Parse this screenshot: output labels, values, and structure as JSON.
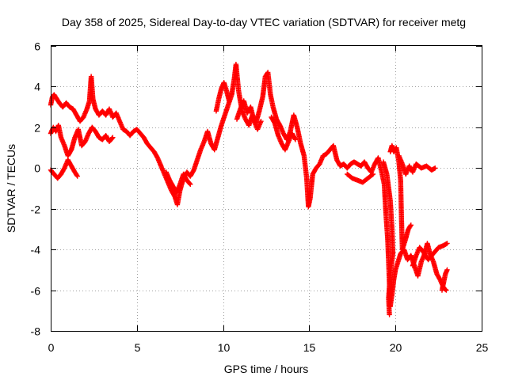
{
  "chart_data": {
    "type": "scatter",
    "title": "Day 358 of 2025, Sidereal Day-to-day VTEC variation (SDTVAR) for receiver metg",
    "xlabel": "GPS time / hours",
    "ylabel": "SDTVAR / TECUs",
    "xlim": [
      0,
      25
    ],
    "ylim": [
      -8,
      6
    ],
    "xticks": [
      0,
      5,
      10,
      15,
      20,
      25
    ],
    "yticks": [
      -8,
      -6,
      -4,
      -2,
      0,
      2,
      4,
      6
    ],
    "xtick_labels": [
      "0",
      "5",
      "10",
      "15",
      "20",
      "25"
    ],
    "ytick_labels": [
      "-8",
      "-6",
      "-4",
      "-2",
      "0",
      "2",
      "4",
      "6"
    ],
    "grid": true,
    "marker": "+",
    "color": "#ff0000",
    "series": [
      {
        "name": "SDTVAR",
        "segments": [
          [
            [
              0.0,
              3.1
            ],
            [
              0.1,
              3.5
            ],
            [
              0.2,
              3.6
            ],
            [
              0.35,
              3.4
            ],
            [
              0.5,
              3.2
            ],
            [
              0.7,
              3.0
            ],
            [
              0.9,
              3.2
            ],
            [
              1.1,
              3.0
            ],
            [
              1.3,
              2.9
            ],
            [
              1.5,
              2.6
            ],
            [
              1.7,
              2.3
            ],
            [
              1.9,
              2.5
            ],
            [
              2.1,
              2.9
            ],
            [
              2.25,
              3.3
            ],
            [
              2.35,
              4.5
            ],
            [
              2.45,
              3.4
            ],
            [
              2.6,
              2.9
            ],
            [
              2.8,
              2.6
            ],
            [
              3.0,
              2.8
            ],
            [
              3.2,
              2.6
            ],
            [
              3.4,
              2.9
            ],
            [
              3.6,
              2.5
            ],
            [
              3.8,
              2.7
            ],
            [
              4.0,
              2.3
            ],
            [
              4.2,
              1.9
            ],
            [
              4.4,
              1.8
            ],
            [
              4.6,
              1.6
            ],
            [
              4.8,
              1.8
            ],
            [
              5.0,
              1.9
            ],
            [
              5.2,
              1.7
            ],
            [
              5.4,
              1.5
            ],
            [
              5.6,
              1.2
            ],
            [
              5.8,
              1.0
            ],
            [
              6.0,
              0.8
            ],
            [
              6.2,
              0.5
            ],
            [
              6.4,
              0.1
            ],
            [
              6.6,
              -0.3
            ],
            [
              6.8,
              -0.7
            ],
            [
              7.0,
              -1.1
            ],
            [
              7.2,
              -1.4
            ],
            [
              7.35,
              -1.8
            ],
            [
              7.5,
              -1.1
            ],
            [
              7.7,
              -0.5
            ],
            [
              7.9,
              -0.2
            ],
            [
              8.1,
              -0.4
            ],
            [
              8.3,
              -0.1
            ],
            [
              8.5,
              0.4
            ],
            [
              8.7,
              0.9
            ],
            [
              8.9,
              1.3
            ],
            [
              9.1,
              1.8
            ],
            [
              9.3,
              1.2
            ],
            [
              9.5,
              0.9
            ],
            [
              9.7,
              1.5
            ],
            [
              9.9,
              2.1
            ],
            [
              10.1,
              2.6
            ],
            [
              10.3,
              3.1
            ],
            [
              10.5,
              3.6
            ],
            [
              10.65,
              4.4
            ],
            [
              10.75,
              5.1
            ],
            [
              10.9,
              3.8
            ],
            [
              11.1,
              2.8
            ],
            [
              11.3,
              2.4
            ],
            [
              11.5,
              2.1
            ],
            [
              11.7,
              2.6
            ],
            [
              11.9,
              2.2
            ],
            [
              12.1,
              2.8
            ],
            [
              12.3,
              3.5
            ],
            [
              12.45,
              4.5
            ],
            [
              12.6,
              4.7
            ],
            [
              12.75,
              3.6
            ],
            [
              12.9,
              3.0
            ],
            [
              13.1,
              2.4
            ],
            [
              13.3,
              2.1
            ],
            [
              13.5,
              1.7
            ],
            [
              13.7,
              1.4
            ],
            [
              13.9,
              1.8
            ],
            [
              14.1,
              2.6
            ],
            [
              14.3,
              2.0
            ],
            [
              14.5,
              1.2
            ],
            [
              14.7,
              0.6
            ],
            [
              14.85,
              -0.5
            ],
            [
              14.95,
              -1.9
            ],
            [
              15.05,
              -1.5
            ],
            [
              15.2,
              -0.3
            ],
            [
              15.4,
              0.0
            ],
            [
              15.6,
              0.2
            ],
            [
              15.8,
              0.6
            ],
            [
              16.0,
              0.7
            ],
            [
              16.2,
              0.9
            ],
            [
              16.4,
              1.1
            ],
            [
              16.6,
              0.4
            ],
            [
              16.8,
              0.1
            ],
            [
              17.0,
              0.2
            ],
            [
              17.2,
              0.0
            ],
            [
              17.4,
              0.2
            ],
            [
              17.6,
              0.3
            ],
            [
              17.8,
              0.2
            ],
            [
              18.0,
              0.1
            ],
            [
              18.2,
              0.3
            ],
            [
              18.4,
              0.0
            ],
            [
              18.6,
              -0.2
            ],
            [
              18.8,
              0.2
            ],
            [
              19.0,
              0.5
            ],
            [
              19.2,
              -0.2
            ],
            [
              19.35,
              -0.8
            ],
            [
              19.45,
              -2.3
            ],
            [
              19.55,
              -3.5
            ],
            [
              19.62,
              -5.0
            ],
            [
              19.7,
              -6.8
            ],
            [
              19.8,
              -6.2
            ],
            [
              19.9,
              -5.5
            ],
            [
              20.0,
              -5.0
            ],
            [
              20.15,
              -4.6
            ],
            [
              20.3,
              -4.2
            ],
            [
              20.5,
              -4.0
            ],
            [
              20.7,
              -4.5
            ],
            [
              20.9,
              -4.3
            ],
            [
              21.1,
              -4.8
            ],
            [
              21.3,
              -5.3
            ],
            [
              21.5,
              -4.6
            ],
            [
              21.7,
              -4.2
            ],
            [
              21.85,
              -3.7
            ],
            [
              22.0,
              -4.2
            ],
            [
              22.2,
              -4.6
            ],
            [
              22.4,
              -5.2
            ],
            [
              22.6,
              -5.5
            ],
            [
              22.8,
              -5.9
            ],
            [
              22.95,
              -6.0
            ]
          ],
          [
            [
              0.0,
              -0.1
            ],
            [
              0.2,
              -0.3
            ],
            [
              0.4,
              -0.5
            ],
            [
              0.6,
              -0.3
            ],
            [
              0.8,
              0.0
            ],
            [
              1.0,
              0.4
            ],
            [
              1.2,
              0.1
            ],
            [
              1.4,
              -0.2
            ],
            [
              1.55,
              -0.4
            ]
          ],
          [
            [
              0.0,
              1.7
            ],
            [
              0.15,
              2.0
            ],
            [
              0.3,
              1.8
            ],
            [
              0.45,
              2.1
            ],
            [
              0.6,
              1.5
            ],
            [
              0.8,
              1.1
            ],
            [
              1.0,
              0.6
            ],
            [
              1.2,
              0.9
            ],
            [
              1.4,
              1.5
            ],
            [
              1.6,
              1.9
            ],
            [
              1.8,
              1.1
            ],
            [
              2.0,
              1.3
            ],
            [
              2.2,
              1.7
            ],
            [
              2.4,
              2.0
            ],
            [
              2.6,
              1.8
            ],
            [
              2.8,
              1.5
            ],
            [
              3.0,
              1.4
            ],
            [
              3.2,
              1.6
            ],
            [
              3.4,
              1.3
            ],
            [
              3.6,
              1.5
            ]
          ],
          [
            [
              10.8,
              2.4
            ],
            [
              11.0,
              2.9
            ],
            [
              11.2,
              3.3
            ],
            [
              11.4,
              2.7
            ],
            [
              11.6,
              3.0
            ],
            [
              11.8,
              2.3
            ],
            [
              12.0,
              1.9
            ],
            [
              12.2,
              2.3
            ]
          ],
          [
            [
              9.6,
              2.8
            ],
            [
              9.75,
              3.4
            ],
            [
              9.9,
              3.9
            ],
            [
              10.05,
              4.2
            ],
            [
              10.2,
              3.8
            ],
            [
              10.35,
              3.3
            ]
          ],
          [
            [
              12.8,
              2.5
            ],
            [
              13.0,
              2.2
            ],
            [
              13.2,
              1.6
            ],
            [
              13.4,
              1.2
            ],
            [
              13.6,
              0.9
            ],
            [
              13.8,
              1.3
            ],
            [
              14.0,
              1.7
            ],
            [
              14.2,
              1.4
            ]
          ],
          [
            [
              19.3,
              0.3
            ],
            [
              19.5,
              -0.3
            ],
            [
              19.7,
              -1.6
            ],
            [
              19.8,
              -3.0
            ],
            [
              19.85,
              -4.2
            ],
            [
              19.7,
              -5.2
            ],
            [
              19.6,
              -6.4
            ],
            [
              19.65,
              -7.2
            ]
          ],
          [
            [
              20.2,
              0.6
            ],
            [
              20.4,
              0.2
            ],
            [
              20.6,
              -0.3
            ],
            [
              20.8,
              0.1
            ],
            [
              21.0,
              -0.2
            ],
            [
              21.2,
              0.2
            ],
            [
              21.5,
              0.0
            ],
            [
              21.8,
              0.1
            ],
            [
              22.1,
              -0.1
            ],
            [
              22.3,
              0.0
            ]
          ],
          [
            [
              19.7,
              0.8
            ],
            [
              19.8,
              1.1
            ],
            [
              19.9,
              0.8
            ],
            [
              20.05,
              1.0
            ],
            [
              20.2,
              0.3
            ],
            [
              20.3,
              -0.6
            ],
            [
              20.35,
              -2.5
            ],
            [
              20.4,
              -4.0
            ],
            [
              20.55,
              -3.6
            ],
            [
              20.75,
              -3.0
            ],
            [
              20.9,
              -2.8
            ]
          ],
          [
            [
              17.2,
              -0.3
            ],
            [
              17.5,
              -0.5
            ],
            [
              17.8,
              -0.6
            ],
            [
              18.1,
              -0.7
            ],
            [
              18.4,
              -0.5
            ],
            [
              18.7,
              -0.3
            ]
          ],
          [
            [
              21.0,
              -4.8
            ],
            [
              21.2,
              -4.3
            ],
            [
              21.4,
              -3.9
            ],
            [
              21.6,
              -4.1
            ],
            [
              21.9,
              -4.5
            ],
            [
              22.2,
              -4.2
            ],
            [
              22.5,
              -3.9
            ],
            [
              22.8,
              -3.8
            ],
            [
              23.0,
              -3.7
            ]
          ],
          [
            [
              22.7,
              -6.0
            ],
            [
              22.8,
              -5.6
            ],
            [
              22.9,
              -5.2
            ],
            [
              23.0,
              -5.0
            ]
          ],
          [
            [
              6.7,
              -0.2
            ],
            [
              6.9,
              -0.6
            ],
            [
              7.1,
              -0.9
            ],
            [
              7.3,
              -1.2
            ],
            [
              7.5,
              -0.8
            ],
            [
              7.7,
              -0.3
            ],
            [
              7.9,
              -0.6
            ],
            [
              8.1,
              -0.8
            ]
          ]
        ]
      }
    ]
  }
}
